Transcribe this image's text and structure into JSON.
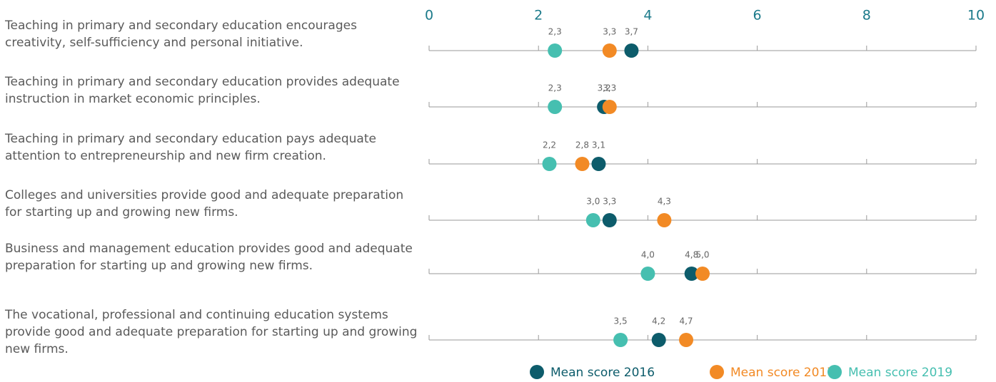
{
  "chart_data": {
    "type": "dot",
    "categories": [
      "Teaching in primary and secondary education encourages creativity, self-sufficiency and personal initiative.",
      "Teaching in primary and secondary education provides adequate instruction in market economic principles.",
      "Teaching in primary and secondary education pays adequate attention to entrepreneurship and new firm creation.",
      "Colleges and universities provide good and adequate preparation for starting up and growing new firms.",
      "Business and management education provides good and adequate preparation for starting up and growing new firms.",
      "The vocational, professional and continuing education systems provide good and adequate preparation for starting up and growing new firms."
    ],
    "series": [
      {
        "name": "Mean score 2016",
        "color": "#0d5c6b",
        "values": [
          3.7,
          3.2,
          3.1,
          3.3,
          4.8,
          4.2
        ],
        "value_labels": [
          "3,7",
          "3,2",
          "3,1",
          "3,3",
          "4,8",
          "4,2"
        ]
      },
      {
        "name": "Mean score 2017",
        "color": "#f28a25",
        "values": [
          3.3,
          3.3,
          2.8,
          4.3,
          5.0,
          4.7
        ],
        "value_labels": [
          "3,3",
          "3,3",
          "2,8",
          "4,3",
          "5,0",
          "4,7"
        ]
      },
      {
        "name": "Mean score 2019",
        "color": "#46bfb0",
        "values": [
          2.3,
          2.3,
          2.2,
          3.0,
          4.0,
          3.5
        ],
        "value_labels": [
          "2,3",
          "2,3",
          "2,2",
          "3,0",
          "4,0",
          "3,5"
        ]
      }
    ],
    "xlim": [
      0,
      10
    ],
    "xticks": [
      0,
      2,
      4,
      6,
      8,
      10
    ],
    "legend": "bottom-right"
  }
}
